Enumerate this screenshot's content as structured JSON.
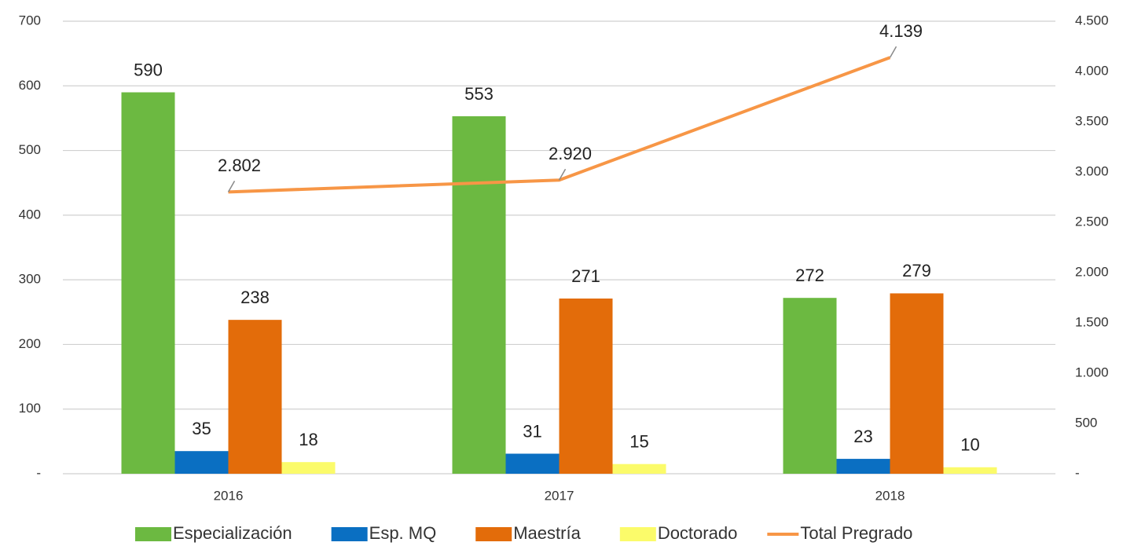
{
  "chart_data": {
    "type": "bar",
    "categories": [
      "2016",
      "2017",
      "2018"
    ],
    "series": [
      {
        "name": "Especialización",
        "color": "#6cb941",
        "values": [
          590,
          553,
          272
        ]
      },
      {
        "name": "Esp. MQ",
        "color": "#0a6fc2",
        "values": [
          35,
          31,
          23
        ]
      },
      {
        "name": "Maestría",
        "color": "#e36c0a",
        "values": [
          238,
          271,
          279
        ]
      },
      {
        "name": "Doctorado",
        "color": "#fbfb6a",
        "values": [
          18,
          15,
          10
        ]
      },
      {
        "name": "Total Pregrado",
        "color": "#f79646",
        "type": "line",
        "axis": "y2",
        "values": [
          2802,
          2920,
          4139
        ],
        "value_labels": [
          "2.802",
          "2.920",
          "4.139"
        ]
      }
    ],
    "ylim": [
      0,
      700
    ],
    "yticks": [
      {
        "value": 0,
        "label": "-"
      },
      100,
      200,
      300,
      400,
      500,
      600,
      700
    ],
    "y2lim": [
      0,
      4500
    ],
    "y2ticks": [
      {
        "value": 0,
        "label": "-"
      },
      500,
      {
        "value": 1000,
        "label": "1.000"
      },
      {
        "value": 1500,
        "label": "1.500"
      },
      {
        "value": 2000,
        "label": "2.000"
      },
      {
        "value": 2500,
        "label": "2.500"
      },
      {
        "value": 3000,
        "label": "3.000"
      },
      {
        "value": 3500,
        "label": "3.500"
      },
      {
        "value": 4000,
        "label": "4.000"
      },
      {
        "value": 4500,
        "label": "4.500"
      }
    ],
    "grid": true,
    "legend": "bottom"
  }
}
